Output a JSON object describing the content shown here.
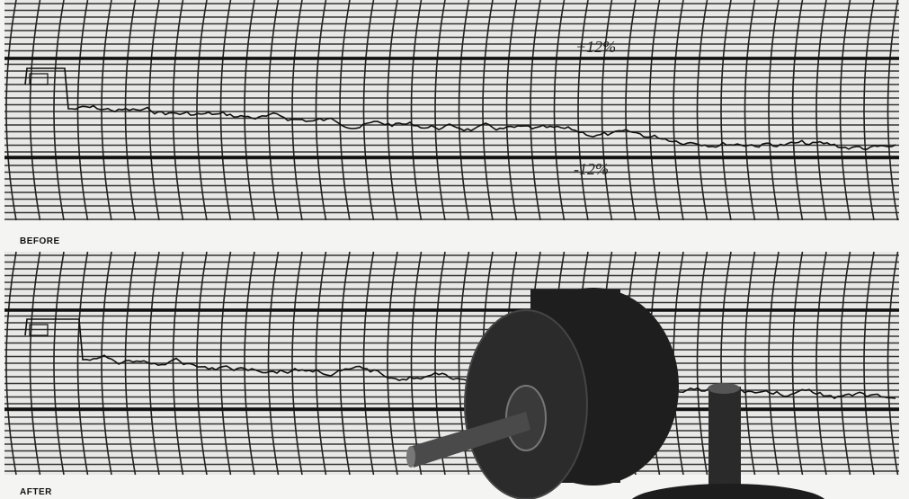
{
  "panels": [
    {
      "label": "BEFORE",
      "upper_note": "+12%",
      "lower_note": "-12%"
    },
    {
      "label": "AFTER"
    }
  ]
}
